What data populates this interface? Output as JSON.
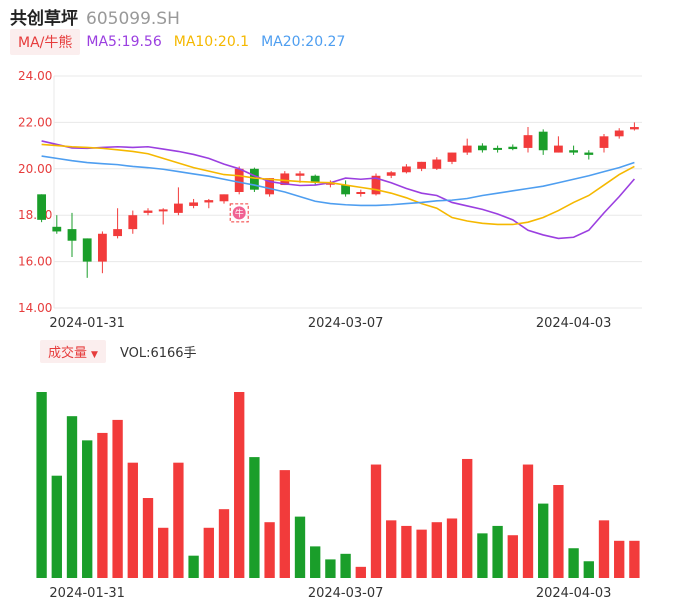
{
  "header": {
    "name": "共创草坪",
    "code": "605099.SH"
  },
  "ma": {
    "switch_label": "MA/牛熊",
    "ma5": {
      "label": "MA5:19.56",
      "color": "#9b3fe0"
    },
    "ma10": {
      "label": "MA10:20.1",
      "color": "#f5b800"
    },
    "ma20": {
      "label": "MA20:20.27",
      "color": "#4e9ef0"
    }
  },
  "volume": {
    "switch_label": "成交量",
    "caret": "▼",
    "value_label": "VOL:6166手"
  },
  "badge": {
    "text": "牛"
  },
  "colors": {
    "up": "#f23b3b",
    "down": "#1a9e2a",
    "axis": "#e63c3c"
  },
  "chart_data": {
    "type": "candlestick",
    "ylim": [
      14,
      24
    ],
    "yticks": [
      "24.00",
      "22.00",
      "20.00",
      "18.00",
      "16.00",
      "14.00"
    ],
    "xticks": [
      {
        "index": 3,
        "label": "2024-01-31"
      },
      {
        "index": 20,
        "label": "2024-03-07"
      },
      {
        "index": 35,
        "label": "2024-04-03"
      }
    ],
    "candles": [
      {
        "o": 18.9,
        "h": 18.9,
        "l": 17.7,
        "c": 17.8
      },
      {
        "o": 17.5,
        "h": 18.0,
        "l": 17.2,
        "c": 17.3
      },
      {
        "o": 17.4,
        "h": 18.1,
        "l": 16.2,
        "c": 16.9
      },
      {
        "o": 17.0,
        "h": 17.0,
        "l": 15.3,
        "c": 16.0
      },
      {
        "o": 16.0,
        "h": 17.3,
        "l": 15.5,
        "c": 17.2
      },
      {
        "o": 17.1,
        "h": 18.3,
        "l": 17.0,
        "c": 17.4
      },
      {
        "o": 17.4,
        "h": 18.2,
        "l": 17.2,
        "c": 18.0
      },
      {
        "o": 18.1,
        "h": 18.3,
        "l": 18.0,
        "c": 18.2
      },
      {
        "o": 18.2,
        "h": 18.3,
        "l": 17.6,
        "c": 18.25
      },
      {
        "o": 18.1,
        "h": 19.2,
        "l": 18.0,
        "c": 18.5
      },
      {
        "o": 18.4,
        "h": 18.7,
        "l": 18.3,
        "c": 18.55
      },
      {
        "o": 18.55,
        "h": 18.7,
        "l": 18.3,
        "c": 18.65
      },
      {
        "o": 18.6,
        "h": 18.9,
        "l": 18.5,
        "c": 18.9
      },
      {
        "o": 19.0,
        "h": 20.1,
        "l": 18.9,
        "c": 20.0
      },
      {
        "o": 20.0,
        "h": 20.05,
        "l": 19.0,
        "c": 19.1
      },
      {
        "o": 18.9,
        "h": 19.6,
        "l": 18.8,
        "c": 19.6
      },
      {
        "o": 19.3,
        "h": 19.9,
        "l": 19.3,
        "c": 19.8
      },
      {
        "o": 19.7,
        "h": 19.9,
        "l": 19.4,
        "c": 19.8
      },
      {
        "o": 19.7,
        "h": 19.75,
        "l": 19.3,
        "c": 19.4
      },
      {
        "o": 19.35,
        "h": 19.5,
        "l": 19.2,
        "c": 19.4
      },
      {
        "o": 19.3,
        "h": 19.5,
        "l": 18.8,
        "c": 18.9
      },
      {
        "o": 18.95,
        "h": 19.1,
        "l": 18.8,
        "c": 19.0
      },
      {
        "o": 18.9,
        "h": 19.8,
        "l": 18.85,
        "c": 19.7
      },
      {
        "o": 19.7,
        "h": 19.9,
        "l": 19.6,
        "c": 19.85
      },
      {
        "o": 19.85,
        "h": 20.2,
        "l": 19.8,
        "c": 20.1
      },
      {
        "o": 20.0,
        "h": 20.3,
        "l": 19.9,
        "c": 20.3
      },
      {
        "o": 20.0,
        "h": 20.5,
        "l": 19.95,
        "c": 20.4
      },
      {
        "o": 20.3,
        "h": 20.7,
        "l": 20.2,
        "c": 20.7
      },
      {
        "o": 20.7,
        "h": 21.3,
        "l": 20.6,
        "c": 21.0
      },
      {
        "o": 21.0,
        "h": 21.1,
        "l": 20.7,
        "c": 20.8
      },
      {
        "o": 20.9,
        "h": 21.0,
        "l": 20.7,
        "c": 20.85
      },
      {
        "o": 20.95,
        "h": 21.05,
        "l": 20.8,
        "c": 20.85
      },
      {
        "o": 20.9,
        "h": 21.8,
        "l": 20.7,
        "c": 21.45
      },
      {
        "o": 21.6,
        "h": 21.7,
        "l": 20.6,
        "c": 20.8
      },
      {
        "o": 20.7,
        "h": 21.4,
        "l": 20.7,
        "c": 21.0
      },
      {
        "o": 20.8,
        "h": 21.0,
        "l": 20.6,
        "c": 20.7
      },
      {
        "o": 20.7,
        "h": 20.8,
        "l": 20.4,
        "c": 20.6
      },
      {
        "o": 20.9,
        "h": 21.5,
        "l": 20.7,
        "c": 21.4
      },
      {
        "o": 21.4,
        "h": 21.75,
        "l": 21.3,
        "c": 21.65
      },
      {
        "o": 21.7,
        "h": 22.0,
        "l": 21.65,
        "c": 21.8
      }
    ],
    "series": [
      {
        "name": "MA5",
        "values": [
          21.2,
          21.05,
          20.9,
          20.88,
          20.92,
          20.95,
          20.92,
          20.95,
          20.85,
          20.75,
          20.62,
          20.45,
          20.2,
          20.0,
          19.7,
          19.45,
          19.35,
          19.28,
          19.3,
          19.4,
          19.6,
          19.55,
          19.6,
          19.4,
          19.15,
          18.95,
          18.85,
          18.55,
          18.4,
          18.25,
          18.05,
          17.8,
          17.35,
          17.15,
          17.0,
          17.05,
          17.35,
          18.1,
          18.8,
          19.56
        ]
      },
      {
        "name": "MA10",
        "values": [
          21.05,
          21.0,
          20.95,
          20.92,
          20.88,
          20.82,
          20.75,
          20.65,
          20.45,
          20.25,
          20.05,
          19.9,
          19.75,
          19.7,
          19.6,
          19.55,
          19.5,
          19.45,
          19.42,
          19.4,
          19.3,
          19.2,
          19.1,
          18.95,
          18.75,
          18.5,
          18.3,
          17.9,
          17.75,
          17.65,
          17.6,
          17.6,
          17.7,
          17.9,
          18.2,
          18.55,
          18.85,
          19.3,
          19.75,
          20.1
        ]
      },
      {
        "name": "MA20",
        "values": [
          20.55,
          20.45,
          20.35,
          20.27,
          20.22,
          20.18,
          20.1,
          20.05,
          19.98,
          19.88,
          19.78,
          19.68,
          19.55,
          19.42,
          19.3,
          19.15,
          19.0,
          18.8,
          18.6,
          18.5,
          18.45,
          18.42,
          18.42,
          18.45,
          18.5,
          18.55,
          18.62,
          18.65,
          18.72,
          18.85,
          18.95,
          19.05,
          19.15,
          19.25,
          19.4,
          19.55,
          19.7,
          19.88,
          20.05,
          20.27
        ]
      }
    ],
    "volume": {
      "values": [
        100,
        55,
        87,
        74,
        78,
        85,
        62,
        43,
        27,
        62,
        12,
        27,
        37,
        100,
        65,
        30,
        58,
        33,
        17,
        10,
        13,
        6,
        61,
        31,
        28,
        26,
        30,
        32,
        64,
        24,
        28,
        23,
        61,
        40,
        50,
        16,
        9,
        31,
        20,
        20
      ],
      "directions": [
        "down",
        "down",
        "down",
        "down",
        "up",
        "up",
        "up",
        "up",
        "up",
        "up",
        "down",
        "up",
        "up",
        "up",
        "down",
        "up",
        "up",
        "down",
        "down",
        "down",
        "down",
        "up",
        "up",
        "up",
        "up",
        "up",
        "up",
        "up",
        "up",
        "down",
        "down",
        "up",
        "up",
        "down",
        "up",
        "down",
        "down",
        "up",
        "up",
        "up"
      ]
    },
    "annotations": [
      {
        "index": 13,
        "price": 18.1,
        "text": "牛"
      }
    ]
  }
}
